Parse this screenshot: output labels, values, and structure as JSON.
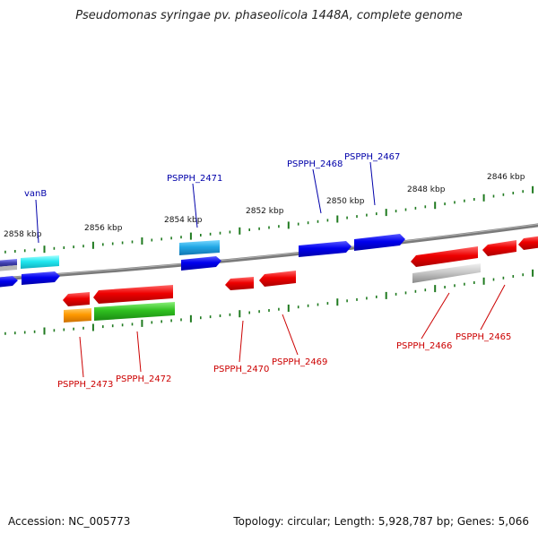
{
  "title": "Pseudomonas syringae pv. phaseolicola 1448A, complete genome",
  "footer": {
    "accession": "Accession: NC_005773",
    "summary": "Topology: circular; Length: 5,928,787 bp; Genes: 5,066"
  },
  "colors": {
    "backbone": "#7a7a7a",
    "ticks": "#1f7a1f",
    "forward_label": "#0000aa",
    "reverse_label": "#cc0000"
  },
  "kbp_labels": [
    "2858 kbp",
    "2856 kbp",
    "2854 kbp",
    "2852 kbp",
    "2850 kbp",
    "2848 kbp",
    "2846 kbp"
  ],
  "genes": {
    "forward": [
      "vanB",
      "PSPPH_2471",
      "PSPPH_2468",
      "PSPPH_2467"
    ],
    "reverse": [
      "PSPPH_2473",
      "PSPPH_2472",
      "PSPPH_2470",
      "PSPPH_2469",
      "PSPPH_2466",
      "PSPPH_2465"
    ]
  }
}
